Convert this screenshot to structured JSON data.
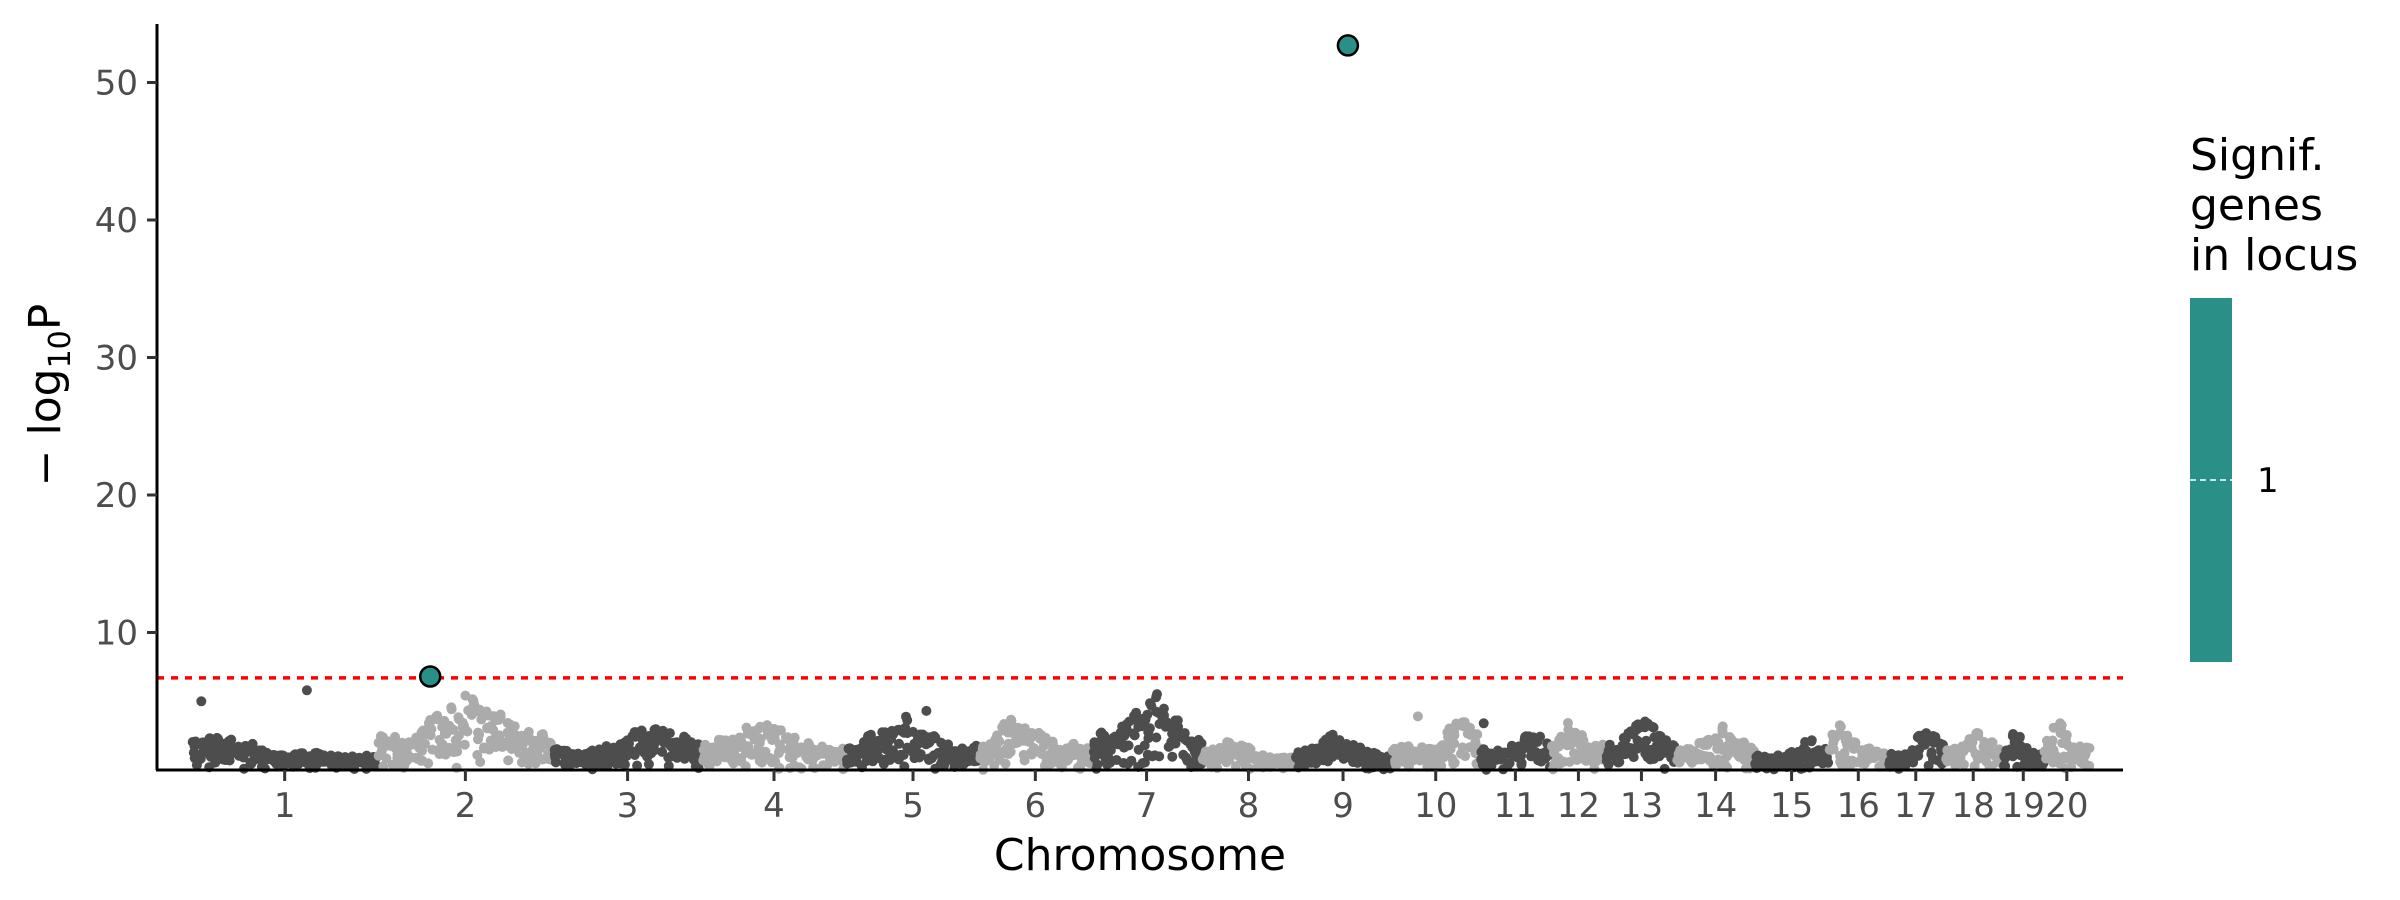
{
  "chart_data": {
    "type": "scatter",
    "subtype": "manhattan",
    "xlabel": "Chromosome",
    "ylabel_main": "− log",
    "ylabel_sub": "10",
    "ylabel_end": "P",
    "ylim": [
      0,
      54
    ],
    "yticks": [
      10,
      20,
      30,
      40,
      50
    ],
    "grid": false,
    "legend_position": "right",
    "significance_threshold": 6.7,
    "threshold_color": "#ff0000",
    "point_colors": [
      "#4d4d4d",
      "#ababab"
    ],
    "highlight_color": "#2a9087",
    "chromosomes": [
      {
        "label": "1",
        "size": 1.0,
        "peak": 2.8
      },
      {
        "label": "2",
        "size": 0.95,
        "peak": 6.0
      },
      {
        "label": "3",
        "size": 0.8,
        "peak": 3.6
      },
      {
        "label": "4",
        "size": 0.78,
        "peak": 4.2
      },
      {
        "label": "5",
        "size": 0.72,
        "peak": 4.3
      },
      {
        "label": "6",
        "size": 0.6,
        "peak": 4.3
      },
      {
        "label": "7",
        "size": 0.6,
        "peak": 6.2
      },
      {
        "label": "8",
        "size": 0.5,
        "peak": 2.6
      },
      {
        "label": "9",
        "size": 0.52,
        "peak": 2.9
      },
      {
        "label": "10",
        "size": 0.48,
        "peak": 3.9
      },
      {
        "label": "11",
        "size": 0.38,
        "peak": 3.4
      },
      {
        "label": "12",
        "size": 0.3,
        "peak": 4.3
      },
      {
        "label": "13",
        "size": 0.38,
        "peak": 4.5
      },
      {
        "label": "14",
        "size": 0.42,
        "peak": 3.7
      },
      {
        "label": "15",
        "size": 0.4,
        "peak": 2.4
      },
      {
        "label": "16",
        "size": 0.32,
        "peak": 3.6
      },
      {
        "label": "17",
        "size": 0.3,
        "peak": 3.3
      },
      {
        "label": "18",
        "size": 0.32,
        "peak": 3.6
      },
      {
        "label": "19",
        "size": 0.22,
        "peak": 3.3
      },
      {
        "label": "20",
        "size": 0.25,
        "peak": 4.1
      }
    ],
    "outliers": [
      {
        "chromosome": "1",
        "position": 0.05,
        "value": 5.0
      },
      {
        "chromosome": "1",
        "position": 0.62,
        "value": 5.8
      },
      {
        "chromosome": "5",
        "position": 0.6,
        "value": 4.3
      },
      {
        "chromosome": "10",
        "position": 0.3,
        "value": 3.9
      },
      {
        "chromosome": "11",
        "position": 0.05,
        "value": 3.4
      }
    ],
    "highlighted_points": [
      {
        "chromosome": "2",
        "position": 0.3,
        "value": 6.8,
        "signif_genes": 1
      },
      {
        "chromosome": "9",
        "position": 0.55,
        "value": 52.7,
        "signif_genes": 1
      }
    ],
    "legend": {
      "title_lines": [
        "Signif.",
        "genes",
        "in locus"
      ],
      "labels": [
        "1"
      ],
      "colors": [
        "#2a9087"
      ]
    }
  }
}
